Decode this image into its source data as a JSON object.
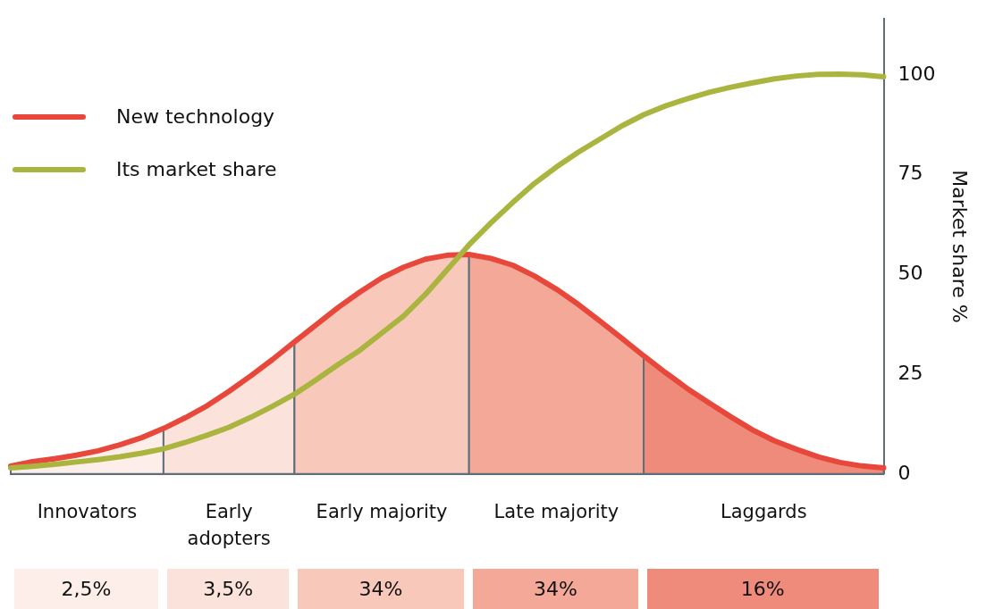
{
  "chart_data": {
    "type": "line",
    "categories": [
      null,
      null,
      null,
      null,
      null,
      null,
      null,
      null,
      null,
      null,
      null,
      null,
      null,
      null,
      null,
      null,
      null,
      null,
      null,
      null,
      null,
      null,
      null,
      null,
      null,
      null,
      null,
      null,
      null,
      null,
      null,
      null,
      null,
      null,
      null,
      null,
      null,
      null,
      null,
      null,
      null
    ],
    "series": [
      {
        "type": "area",
        "name": "Innovators",
        "color": "#fdeee9",
        "values": [
          2,
          3.1,
          3.8,
          4.7,
          5.8,
          7.3,
          9.1,
          11.4,
          null,
          null,
          null,
          null,
          null,
          null,
          null,
          null,
          null,
          null,
          null,
          null,
          null,
          null,
          null,
          null,
          null,
          null,
          null,
          null,
          null,
          null,
          null,
          null,
          null,
          null,
          null,
          null,
          null,
          null,
          null,
          null,
          null
        ]
      },
      {
        "type": "area",
        "name": "Early adopters",
        "color": "#fbe2da",
        "values": [
          null,
          null,
          null,
          null,
          null,
          null,
          null,
          11.4,
          14.1,
          17.1,
          20.7,
          24.6,
          28.7,
          33.1,
          null,
          null,
          null,
          null,
          null,
          null,
          null,
          null,
          null,
          null,
          null,
          null,
          null,
          null,
          null,
          null,
          null,
          null,
          null,
          null,
          null,
          null,
          null,
          null,
          null,
          null,
          null
        ]
      },
      {
        "type": "area",
        "name": "Early majority",
        "color": "#f8c8ba",
        "values": [
          null,
          null,
          null,
          null,
          null,
          null,
          null,
          null,
          null,
          null,
          null,
          null,
          null,
          33.1,
          37.4,
          41.7,
          45.6,
          49.1,
          51.8,
          53.8,
          54.8,
          55,
          null,
          null,
          null,
          null,
          null,
          null,
          null,
          null,
          null,
          null,
          null,
          null,
          null,
          null,
          null,
          null,
          null,
          null,
          null
        ]
      },
      {
        "type": "area",
        "name": "Late majority",
        "color": "#f4a998",
        "values": [
          null,
          null,
          null,
          null,
          null,
          null,
          null,
          null,
          null,
          null,
          null,
          null,
          null,
          null,
          null,
          null,
          null,
          null,
          null,
          null,
          null,
          55,
          54,
          52.3,
          49.6,
          46.3,
          42.5,
          38.3,
          34,
          29.6,
          null,
          null,
          null,
          null,
          null,
          null,
          null,
          null,
          null,
          null,
          null
        ]
      },
      {
        "type": "area",
        "name": "Laggards",
        "color": "#ef8b7a",
        "values": [
          null,
          null,
          null,
          null,
          null,
          null,
          null,
          null,
          null,
          null,
          null,
          null,
          null,
          null,
          null,
          null,
          null,
          null,
          null,
          null,
          null,
          null,
          null,
          null,
          null,
          null,
          null,
          null,
          null,
          29.6,
          25.4,
          21.4,
          17.8,
          14.3,
          11,
          8.3,
          6.2,
          4.3,
          2.9,
          2,
          1.5
        ]
      },
      {
        "name": "Its market share",
        "color": "#aab53f",
        "values": [
          1.5,
          1.9,
          2.4,
          3,
          3.6,
          4.3,
          5.2,
          6.3,
          7.9,
          9.7,
          11.7,
          14.2,
          17,
          20,
          23.6,
          27.4,
          31,
          35.3,
          39.6,
          45,
          51.2,
          57.4,
          62.9,
          68,
          72.8,
          76.9,
          80.6,
          83.9,
          87.2,
          90,
          92.2,
          94,
          95.6,
          96.9,
          98,
          99,
          99.7,
          100.1,
          100.2,
          100,
          99.5
        ]
      },
      {
        "name": "New technology",
        "color": "#e8483b",
        "values": [
          2,
          3.1,
          3.8,
          4.7,
          5.8,
          7.3,
          9.1,
          11.4,
          14.1,
          17.1,
          20.7,
          24.6,
          28.7,
          33.1,
          37.4,
          41.7,
          45.6,
          49.1,
          51.8,
          53.8,
          54.8,
          55,
          54,
          52.3,
          49.6,
          46.3,
          42.5,
          38.3,
          34,
          29.6,
          25.4,
          21.4,
          17.8,
          14.3,
          11,
          8.3,
          6.2,
          4.3,
          2.9,
          2,
          1.5
        ]
      }
    ],
    "ylim": [
      0,
      114
    ],
    "yticks": [
      0,
      25,
      50,
      75,
      100
    ],
    "ylabel": "Market share %",
    "tick_labels": "y",
    "legend": "top left",
    "annotations": [
      "2,5%",
      "3,5%",
      "34%",
      "34%",
      "16%"
    ]
  }
}
